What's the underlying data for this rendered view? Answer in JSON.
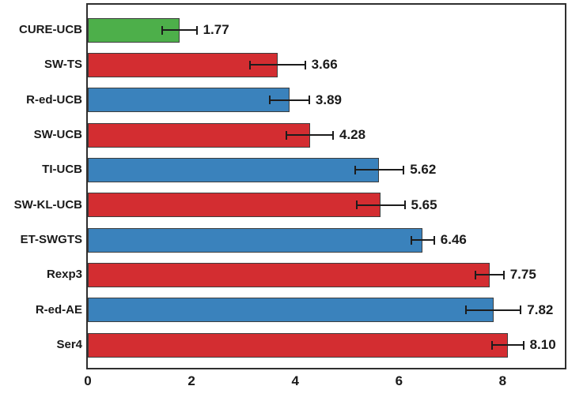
{
  "chart_data": {
    "type": "bar",
    "orientation": "horizontal",
    "title": "",
    "categories": [
      "CURE-UCB",
      "SW-TS",
      "R-ed-UCB",
      "SW-UCB",
      "TI-UCB",
      "SW-KL-UCB",
      "ET-SWGTS",
      "Rexp3",
      "R-ed-AE",
      "Ser4"
    ],
    "values": [
      1.77,
      3.66,
      3.89,
      4.28,
      5.62,
      5.65,
      6.46,
      7.75,
      7.82,
      8.1
    ],
    "value_labels": [
      "1.77",
      "3.66",
      "3.89",
      "4.28",
      "5.62",
      "5.65",
      "6.46",
      "7.75",
      "7.82",
      "8.10"
    ],
    "errors": [
      0.33,
      0.53,
      0.38,
      0.45,
      0.47,
      0.46,
      0.22,
      0.27,
      0.53,
      0.3
    ],
    "bar_colors": [
      "#4daf4a",
      "#d32d31",
      "#3a82bc",
      "#d32d31",
      "#3a82bc",
      "#d32d31",
      "#3a82bc",
      "#d32d31",
      "#3a82bc",
      "#d32d31"
    ],
    "x_ticks": [
      0,
      2,
      4,
      6,
      8
    ],
    "x_tick_labels": [
      "0",
      "2",
      "4",
      "6",
      "8"
    ],
    "xlim": [
      0,
      9.2
    ],
    "grid": false,
    "legend": null,
    "colors": {
      "highlight_green": "#4daf4a",
      "red": "#d32d31",
      "blue": "#3a82bc",
      "bar_edge": "#3d3d3d",
      "error_bar": "#1c1c1c",
      "plot_border": "#2f2f2f",
      "text": "#1a1a1a",
      "background": "#ffffff"
    }
  }
}
